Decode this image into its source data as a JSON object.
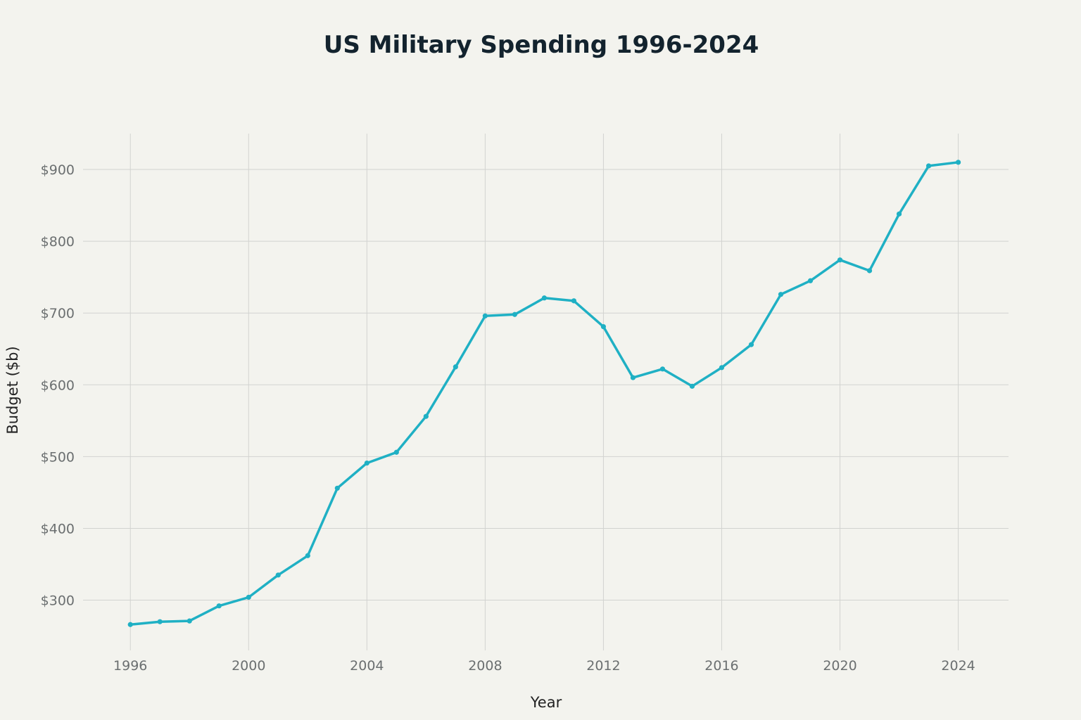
{
  "chart_data": {
    "type": "line",
    "title": "US Military Spending 1996-2024",
    "xlabel": "Year",
    "ylabel": "Budget ($b)",
    "x": [
      1996,
      1997,
      1998,
      1999,
      2000,
      2001,
      2002,
      2003,
      2004,
      2005,
      2006,
      2007,
      2008,
      2009,
      2010,
      2011,
      2012,
      2013,
      2014,
      2015,
      2016,
      2017,
      2018,
      2019,
      2020,
      2021,
      2022,
      2023,
      2024
    ],
    "series": [
      {
        "name": "Budget ($b)",
        "color": "#1fb0c4",
        "values": [
          266,
          270,
          271,
          292,
          304,
          335,
          362,
          456,
          491,
          506,
          556,
          625,
          696,
          698,
          721,
          717,
          681,
          610,
          622,
          598,
          624,
          656,
          726,
          745,
          774,
          759,
          838,
          905,
          910
        ]
      }
    ],
    "xticks": [
      {
        "value": 1996,
        "label": "1996"
      },
      {
        "value": 2000,
        "label": "2000"
      },
      {
        "value": 2004,
        "label": "2004"
      },
      {
        "value": 2008,
        "label": "2008"
      },
      {
        "value": 2012,
        "label": "2012"
      },
      {
        "value": 2016,
        "label": "2016"
      },
      {
        "value": 2020,
        "label": "2020"
      },
      {
        "value": 2024,
        "label": "2024"
      }
    ],
    "yticks": [
      {
        "value": 300,
        "label": "$300"
      },
      {
        "value": 400,
        "label": "$400"
      },
      {
        "value": 500,
        "label": "$500"
      },
      {
        "value": 600,
        "label": "$600"
      },
      {
        "value": 700,
        "label": "$700"
      },
      {
        "value": 800,
        "label": "$800"
      },
      {
        "value": 900,
        "label": "$900"
      }
    ],
    "xlim": [
      1994.4,
      2025.7
    ],
    "ylim": [
      230,
      950
    ],
    "grid": true,
    "legend": "none"
  }
}
